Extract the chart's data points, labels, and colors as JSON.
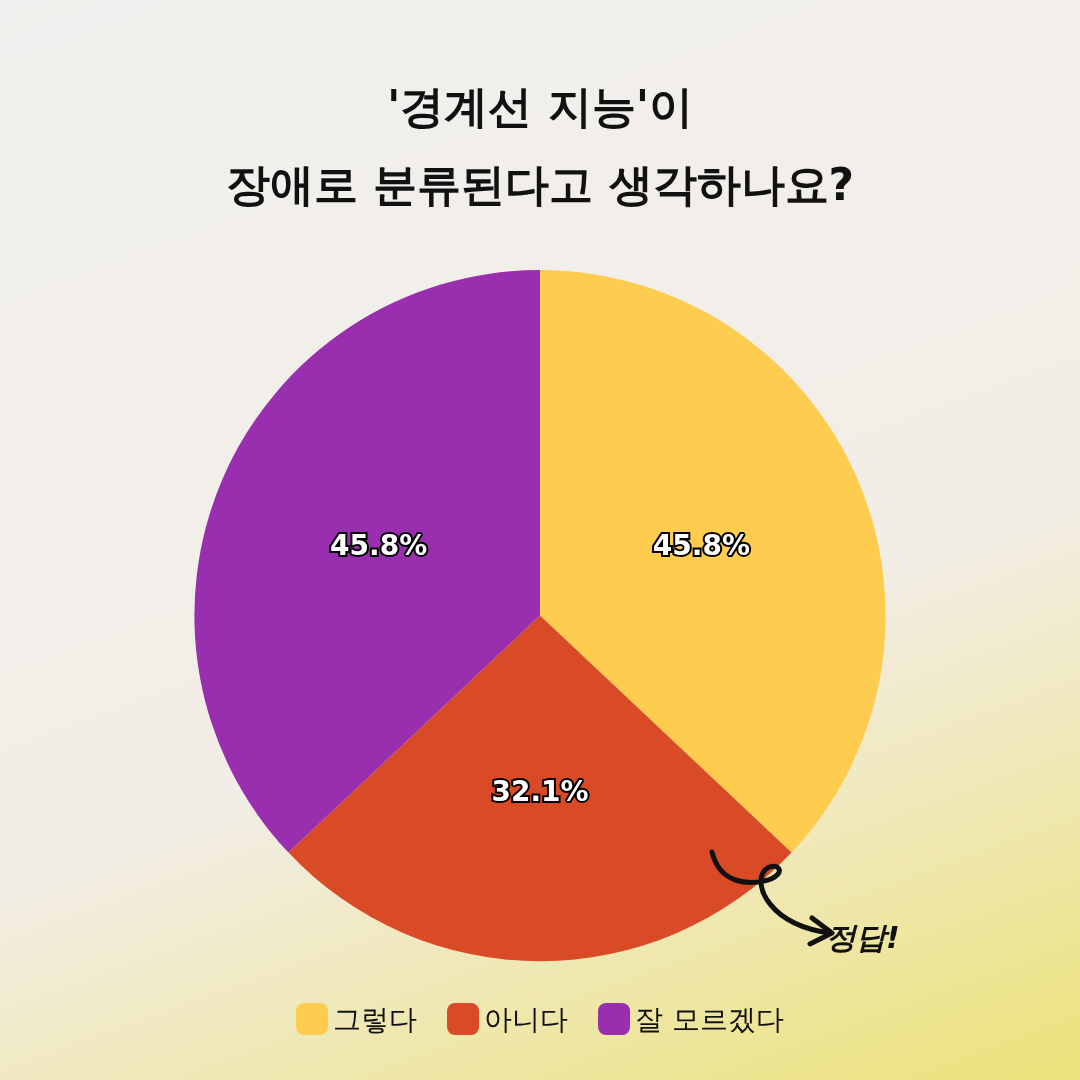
{
  "chart_data": {
    "type": "pie",
    "title": "'경계선 지능'이\n장애로 분류된다고 생각하나요?",
    "categories": [
      "그렇다",
      "아니다",
      "잘 모르겠다"
    ],
    "values": [
      45.8,
      32.1,
      45.8
    ],
    "value_labels": [
      "45.8%",
      "32.1%",
      "45.8%"
    ],
    "colors": [
      "#fecc4e",
      "#d94a26",
      "#992fae"
    ],
    "legend": "bottom",
    "annotations": [
      "정답!"
    ]
  }
}
